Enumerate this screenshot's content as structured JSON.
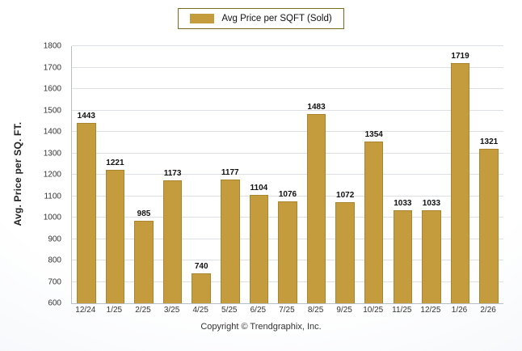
{
  "legend": {
    "label": "Avg Price per SQFT (Sold)",
    "swatch_color": "#c49b3d"
  },
  "footer": {
    "copyright": "Copyright © Trendgraphix, Inc."
  },
  "chart_data": {
    "type": "bar",
    "title": "Avg Price per SQFT (Sold)",
    "categories": [
      "12/24",
      "1/25",
      "2/25",
      "3/25",
      "4/25",
      "5/25",
      "6/25",
      "7/25",
      "8/25",
      "9/25",
      "10/25",
      "11/25",
      "12/25",
      "1/26",
      "2/26"
    ],
    "values": [
      1443,
      1221,
      985,
      1173,
      740,
      1177,
      1104,
      1076,
      1483,
      1072,
      1354,
      1033,
      1033,
      1719,
      1321
    ],
    "xlabel": "",
    "ylabel": "Avg. Price per SQ. FT.",
    "ylim": [
      600,
      1800
    ],
    "ytick_step": 100,
    "grid": true,
    "legend_position": "top",
    "bar_color": "#c49b3d",
    "bar_border_color": "#ab852e"
  }
}
